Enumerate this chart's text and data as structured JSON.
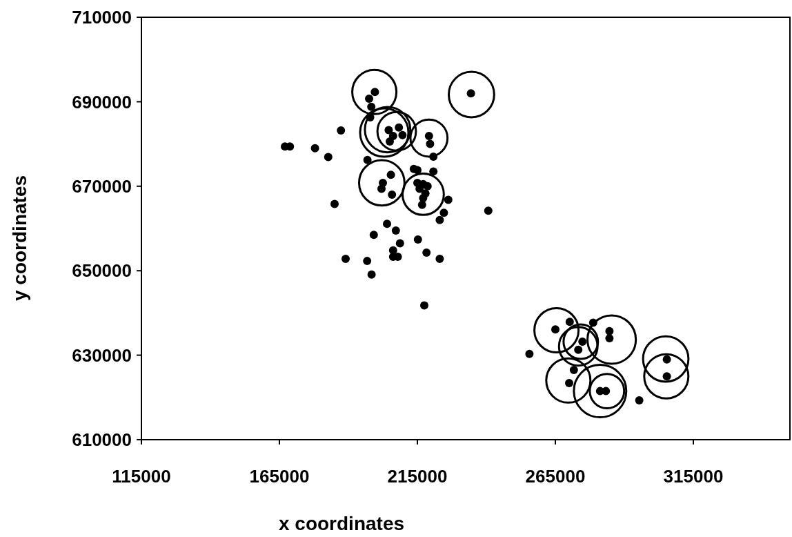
{
  "chart_data": {
    "type": "scatter",
    "xlabel": "x coordinates",
    "ylabel": "y coordinates",
    "xlim": [
      115000,
      350000
    ],
    "ylim": [
      610000,
      710000
    ],
    "xticks": [
      115000,
      165000,
      215000,
      265000,
      315000
    ],
    "yticks": [
      610000,
      630000,
      650000,
      670000,
      690000,
      710000
    ],
    "grid": false,
    "marker": "circle",
    "series": [
      {
        "color": "#000000",
        "x": [
          167000,
          168800,
          177900,
          182700,
          187300,
          185000,
          189000,
          196800,
          198400,
          204000,
          207200,
          199200,
          215200,
          208700,
          206200,
          207900,
          206200,
          218300,
          223100,
          217500,
          240700,
          226200,
          224600,
          223100,
          215000,
          217100,
          218700,
          217900,
          217100,
          216700,
          215800,
          202500,
          202000,
          205400,
          205800,
          199600,
          197500,
          198300,
          197900,
          196900,
          234400,
          204600,
          208300,
          206200,
          209600,
          205000,
          219200,
          219600,
          220800,
          213700,
          215000,
          220800,
          255600,
          265000,
          270200,
          274800,
          273300,
          278700,
          284600,
          284600,
          271700,
          270000,
          281200,
          283300,
          295400,
          305400,
          305400
        ],
        "values": [
          679400,
          679400,
          679000,
          676900,
          683200,
          665800,
          652800,
          652300,
          649100,
          661100,
          659500,
          658500,
          657400,
          656500,
          654800,
          653300,
          653300,
          654300,
          652800,
          641800,
          664200,
          666800,
          663700,
          662000,
          670800,
          670500,
          670000,
          668300,
          667200,
          665600,
          669400,
          670800,
          669400,
          672700,
          668000,
          692300,
          690700,
          688800,
          686300,
          676200,
          692000,
          683300,
          683900,
          681900,
          682100,
          680600,
          681900,
          680000,
          677000,
          674100,
          673800,
          673500,
          630300,
          636100,
          637900,
          633200,
          631300,
          637700,
          635700,
          634000,
          626500,
          623400,
          621500,
          621500,
          619300,
          629000,
          625000
        ]
      },
      {
        "type": "bubble",
        "color": "#000000",
        "x": [
          199400,
          234600,
          203000,
          204200,
          207500,
          219200,
          202100,
          217100,
          265400,
          273300,
          274200,
          285400,
          269700,
          281200,
          283700,
          305000,
          305200
        ],
        "values": [
          692300,
          691700,
          682700,
          683400,
          683000,
          681400,
          670800,
          668100,
          635900,
          632100,
          633200,
          633700,
          624000,
          621500,
          621500,
          629100,
          625000
        ],
        "sizes": [
          0.71,
          0.75,
          0.85,
          0.75,
          0.54,
          0.5,
          0.75,
          0.62,
          0.71,
          0.54,
          0.43,
          0.85,
          0.71,
          1,
          0.43,
          0.75,
          0.71
        ]
      }
    ]
  }
}
